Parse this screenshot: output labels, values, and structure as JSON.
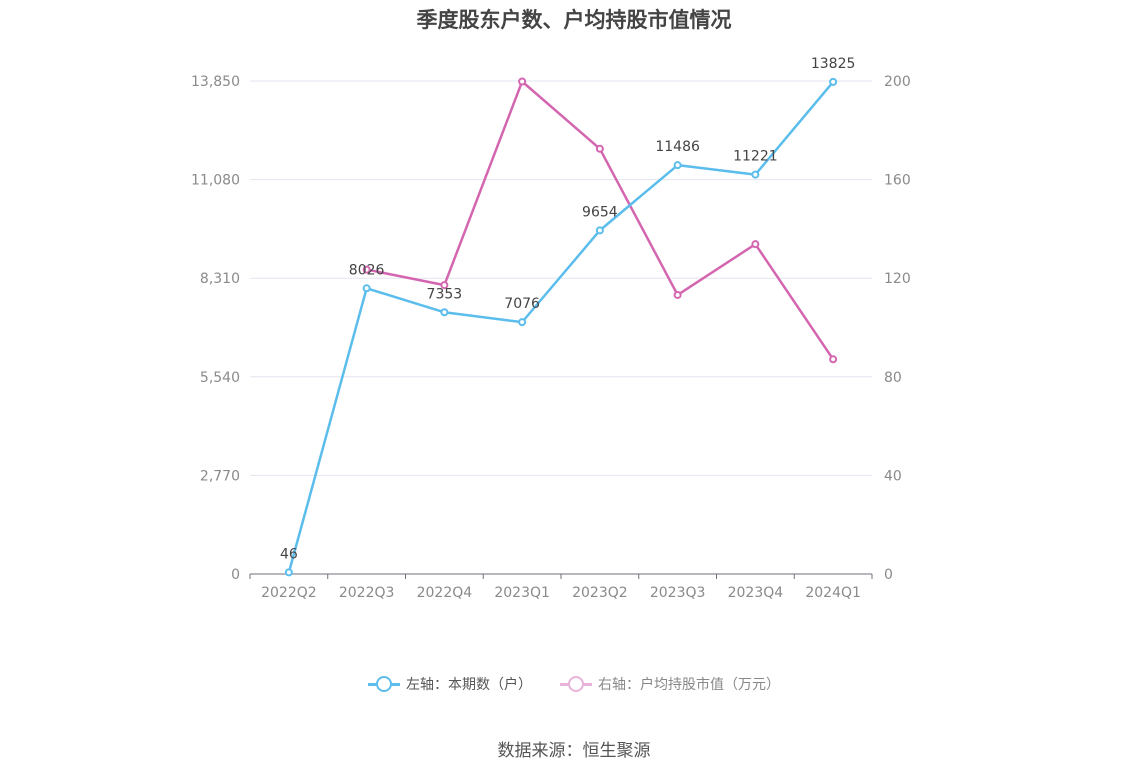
{
  "title": "季度股东户数、户均持股市值情况",
  "source": "数据来源：恒生聚源",
  "colors": {
    "left_series": "#5bbdec",
    "right_series": "#d466b0",
    "grid": "#e3e6ef",
    "axis": "#8a8a8a"
  },
  "chart_data": {
    "type": "line",
    "categories": [
      "2022Q2",
      "2022Q3",
      "2022Q4",
      "2023Q1",
      "2023Q2",
      "2023Q3",
      "2023Q4",
      "2024Q1"
    ],
    "left_axis": {
      "ylim": [
        0,
        13850
      ],
      "ticks": [
        0,
        2770,
        5540,
        8310,
        11080,
        13850
      ],
      "tick_labels": [
        "0",
        "2,770",
        "5,540",
        "8,310",
        "11,080",
        "13,850"
      ]
    },
    "right_axis": {
      "ylim": [
        0,
        200
      ],
      "ticks": [
        0,
        40,
        80,
        120,
        160,
        200
      ],
      "tick_labels": [
        "0",
        "40",
        "80",
        "120",
        "160",
        "200"
      ]
    },
    "grid": true,
    "legend_position": "bottom",
    "series": [
      {
        "name": "左轴：本期数（户）",
        "axis": "left",
        "values": [
          46,
          8026,
          7353,
          7076,
          9654,
          11486,
          11221,
          13825
        ],
        "data_labels": [
          "46",
          "8026",
          "7353",
          "7076",
          "9654",
          "11486",
          "11221",
          "13825"
        ]
      },
      {
        "name": "右轴：户均持股市值（万元）",
        "axis": "right",
        "values": [
          null,
          123.5,
          117.2,
          199.8,
          172.5,
          113.2,
          133.8,
          87.1
        ]
      }
    ]
  }
}
